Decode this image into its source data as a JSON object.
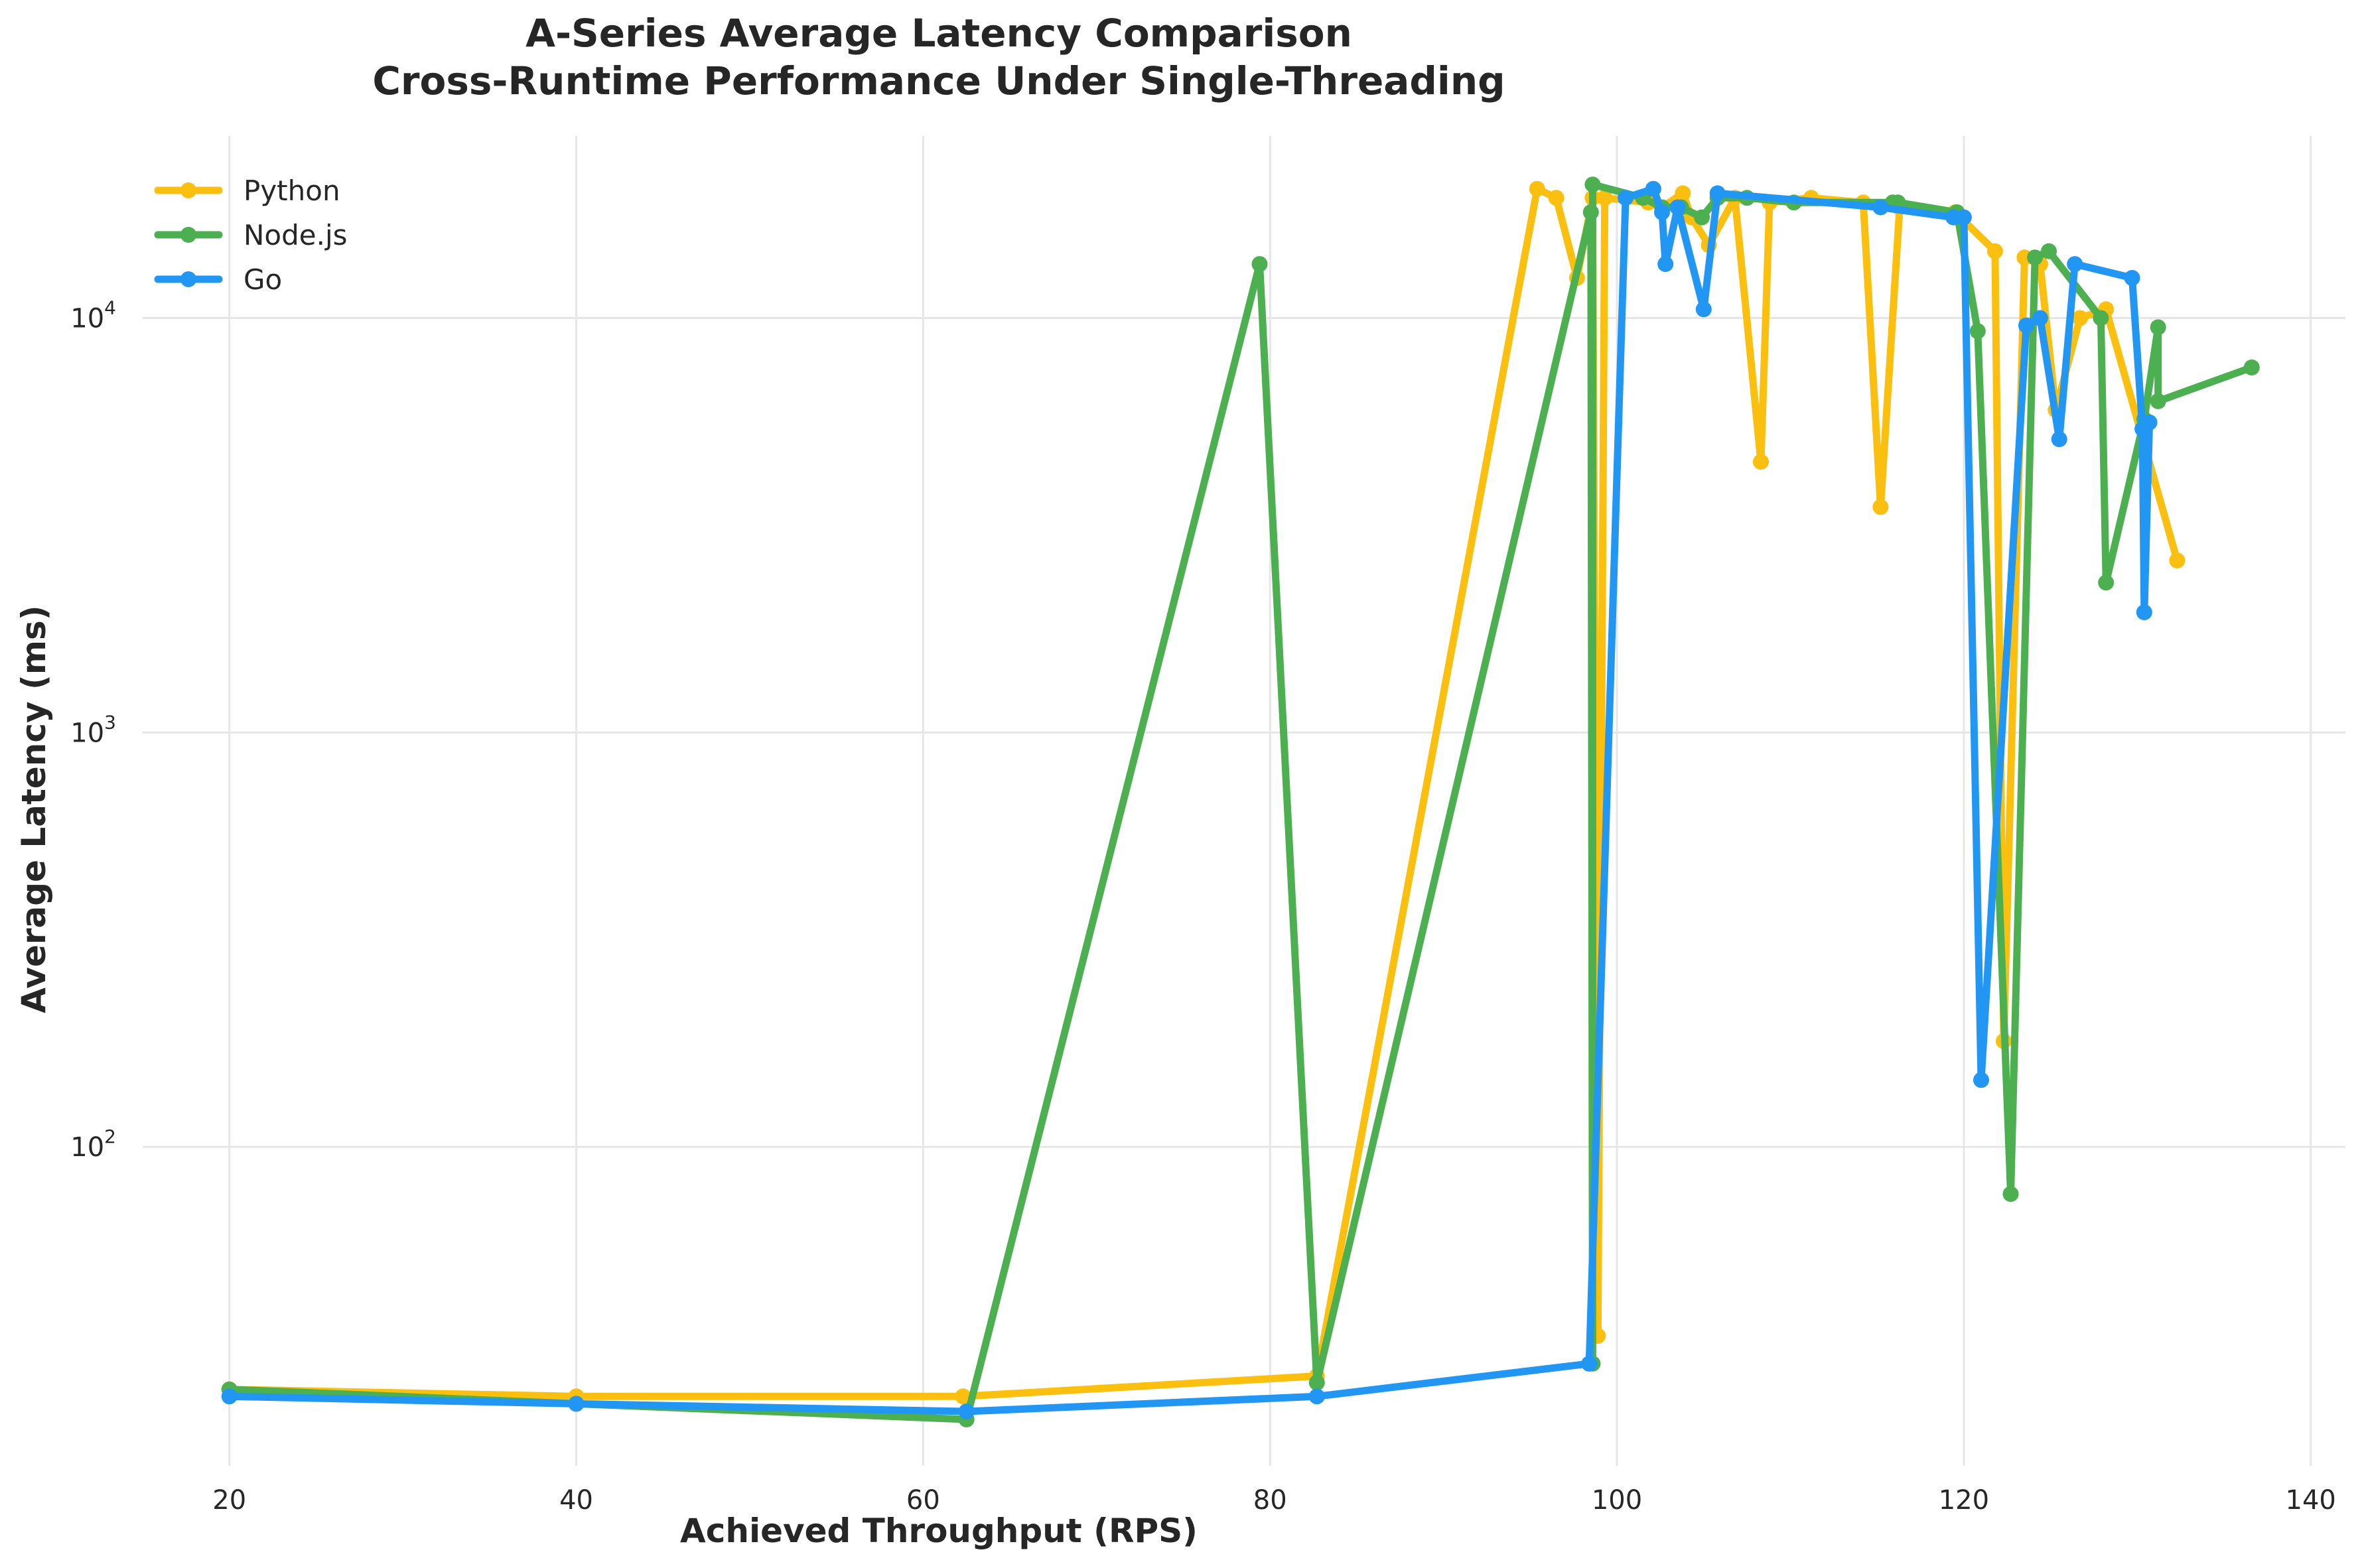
{
  "chart_data": {
    "type": "line",
    "title": "A-Series Average Latency Comparison",
    "subtitle": "Cross-Runtime Performance Under Single-Threading",
    "xlabel": "Achieved Throughput (RPS)",
    "ylabel": "Average Latency (ms)",
    "xlim": [
      15,
      142
    ],
    "ylim": [
      17,
      27500
    ],
    "yscale": "log",
    "grid": true,
    "legend_position": "top-left",
    "x_ticks": [
      {
        "value": 20,
        "label": "20"
      },
      {
        "value": 40,
        "label": "40"
      },
      {
        "value": 60,
        "label": "60"
      },
      {
        "value": 80,
        "label": "80"
      },
      {
        "value": 100,
        "label": "100"
      },
      {
        "value": 120,
        "label": "120"
      },
      {
        "value": 140,
        "label": "140"
      }
    ],
    "y_ticks": [
      {
        "value": 100,
        "base": "10",
        "exp": "2"
      },
      {
        "value": 1000,
        "base": "10",
        "exp": "3"
      },
      {
        "value": 10000,
        "base": "10",
        "exp": "4"
      }
    ],
    "series": [
      {
        "name": "Python",
        "color": "#FBBF0F",
        "points": [
          [
            20,
            26
          ],
          [
            40,
            25
          ],
          [
            62.3,
            25
          ],
          [
            82.7,
            28
          ],
          [
            95.4,
            20500
          ],
          [
            96.5,
            19500
          ],
          [
            97.7,
            12500
          ],
          [
            98.6,
            19500
          ],
          [
            98.9,
            35
          ],
          [
            99.3,
            19500
          ],
          [
            101.8,
            19000
          ],
          [
            102.6,
            18500
          ],
          [
            103.8,
            20000
          ],
          [
            104.3,
            17500
          ],
          [
            105.3,
            15000
          ],
          [
            106.8,
            19500
          ],
          [
            108.3,
            4500
          ],
          [
            108.8,
            19000
          ],
          [
            111.2,
            19500
          ],
          [
            114.2,
            19000
          ],
          [
            115.2,
            3500
          ],
          [
            116.3,
            18500
          ],
          [
            119.5,
            18000
          ],
          [
            121.8,
            14500
          ],
          [
            122.3,
            180
          ],
          [
            123.5,
            14000
          ],
          [
            124.4,
            13500
          ],
          [
            125.3,
            6000
          ],
          [
            126.7,
            10000
          ],
          [
            128.2,
            10500
          ],
          [
            132.3,
            2600
          ]
        ]
      },
      {
        "name": "Node.js",
        "color": "#4CAF50",
        "points": [
          [
            20,
            26
          ],
          [
            40,
            24
          ],
          [
            62.5,
            22
          ],
          [
            79.4,
            13500
          ],
          [
            82.7,
            27
          ],
          [
            98.5,
            18000
          ],
          [
            98.6,
            30
          ],
          [
            98.6,
            21000
          ],
          [
            101.5,
            19500
          ],
          [
            102.6,
            18500
          ],
          [
            103.7,
            18500
          ],
          [
            104.9,
            17500
          ],
          [
            105.8,
            19500
          ],
          [
            107.5,
            19500
          ],
          [
            110.2,
            19000
          ],
          [
            115.9,
            19000
          ],
          [
            116.2,
            19000
          ],
          [
            119.6,
            18000
          ],
          [
            120.8,
            9300
          ],
          [
            122.7,
            77
          ],
          [
            124.1,
            14000
          ],
          [
            124.9,
            14500
          ],
          [
            127.9,
            10000
          ],
          [
            128.2,
            2300
          ],
          [
            130.4,
            5700
          ],
          [
            131.2,
            9500
          ],
          [
            131.2,
            6300
          ],
          [
            136.6,
            7600
          ]
        ]
      },
      {
        "name": "Go",
        "color": "#2196F3",
        "points": [
          [
            20,
            25
          ],
          [
            40,
            24
          ],
          [
            62.5,
            23
          ],
          [
            82.7,
            25
          ],
          [
            98.4,
            30
          ],
          [
            100.5,
            19500
          ],
          [
            102.1,
            20500
          ],
          [
            102.6,
            18000
          ],
          [
            102.8,
            13500
          ],
          [
            103.5,
            18500
          ],
          [
            105.0,
            10500
          ],
          [
            105.8,
            20000
          ],
          [
            115.2,
            18500
          ],
          [
            119.4,
            17500
          ],
          [
            120.0,
            17500
          ],
          [
            121.0,
            145
          ],
          [
            123.6,
            9600
          ],
          [
            124.4,
            10000
          ],
          [
            125.5,
            5100
          ],
          [
            126.4,
            13500
          ],
          [
            129.7,
            12500
          ],
          [
            130.3,
            5400
          ],
          [
            130.4,
            1950
          ],
          [
            130.7,
            5600
          ]
        ]
      }
    ]
  }
}
